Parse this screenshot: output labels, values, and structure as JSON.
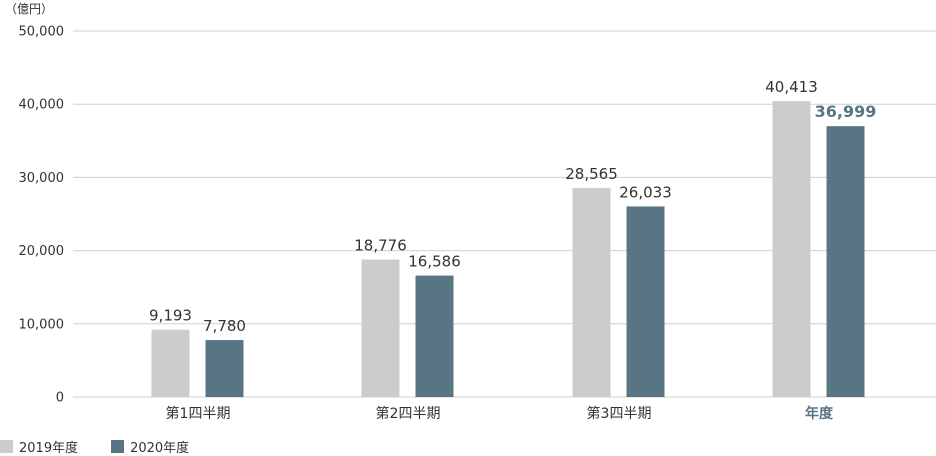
{
  "chart_data": {
    "type": "bar",
    "unit_label": "（億円）",
    "categories": [
      "第1四半期",
      "第2四半期",
      "第3四半期",
      "年度"
    ],
    "series": [
      {
        "name": "2019年度",
        "values": [
          9193,
          18776,
          28565,
          40413
        ],
        "labels": [
          "9,193",
          "18,776",
          "28,565",
          "40,413"
        ]
      },
      {
        "name": "2020年度",
        "values": [
          7780,
          16586,
          26033,
          36999
        ],
        "labels": [
          "7,780",
          "16,586",
          "26,033",
          "36,999"
        ]
      }
    ],
    "yticks": [
      "0",
      "10,000",
      "20,000",
      "30,000",
      "40,000",
      "50,000"
    ],
    "ylim": [
      0,
      50000
    ],
    "grid": true,
    "legend_position": "bottom-left",
    "highlight_category_index": 3,
    "colors": {
      "series_2019": "#cccccc",
      "series_2020": "#587583",
      "highlight_text": "#587583",
      "grid": "#d0d0d0",
      "text": "#333333"
    }
  }
}
